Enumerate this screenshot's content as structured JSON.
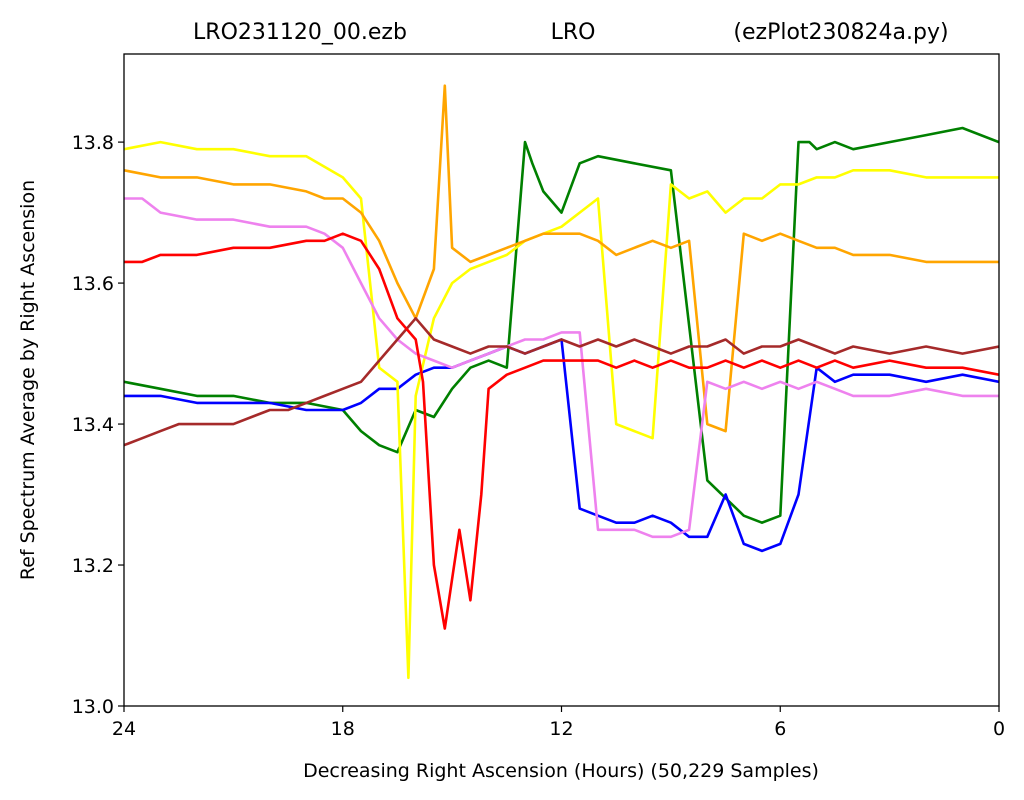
{
  "chart_data": {
    "type": "line",
    "title_parts": {
      "left": "LRO231120_00.ezb",
      "center": "LRO",
      "right": "(ezPlot230824a.py)"
    },
    "xlabel": "Decreasing Right Ascension (Hours) (50,229 Samples)",
    "ylabel": "Ref Spectrum Average by Right Ascension",
    "xlim": [
      24,
      0
    ],
    "ylim": [
      13.0,
      13.925
    ],
    "xticks": [
      24,
      18,
      12,
      6,
      0
    ],
    "yticks": [
      13.0,
      13.2,
      13.4,
      13.6,
      13.8
    ],
    "ytick_labels": [
      "13.0",
      "13.2",
      "13.4",
      "13.6",
      "13.8"
    ],
    "grid": false,
    "series": [
      {
        "color": "#008000",
        "x": [
          24,
          23,
          22,
          21,
          20,
          19,
          18,
          17.5,
          17,
          16.5,
          16,
          15.5,
          15,
          14.5,
          14,
          13.5,
          13,
          12.8,
          12.5,
          12,
          11.5,
          11,
          10,
          9,
          8,
          7,
          6.5,
          6,
          5.5,
          5.2,
          5,
          4.5,
          4,
          3,
          2,
          1,
          0
        ],
        "y": [
          13.46,
          13.45,
          13.44,
          13.44,
          13.43,
          13.43,
          13.42,
          13.39,
          13.37,
          13.36,
          13.42,
          13.41,
          13.45,
          13.48,
          13.49,
          13.48,
          13.8,
          13.77,
          13.73,
          13.7,
          13.77,
          13.78,
          13.77,
          13.76,
          13.32,
          13.27,
          13.26,
          13.27,
          13.8,
          13.8,
          13.79,
          13.8,
          13.79,
          13.8,
          13.81,
          13.82,
          13.8
        ]
      },
      {
        "color": "#0000ff",
        "x": [
          24,
          23,
          22,
          21,
          20,
          19,
          18,
          17.5,
          17,
          16.5,
          16,
          15.5,
          15,
          14.5,
          14,
          13.5,
          13,
          12.5,
          12,
          11.5,
          11,
          10.5,
          10,
          9.5,
          9,
          8.5,
          8,
          7.5,
          7,
          6.5,
          6,
          5.5,
          5,
          4.5,
          4,
          3,
          2,
          1,
          0
        ],
        "y": [
          13.44,
          13.44,
          13.43,
          13.43,
          13.43,
          13.42,
          13.42,
          13.43,
          13.45,
          13.45,
          13.47,
          13.48,
          13.48,
          13.49,
          13.5,
          13.51,
          13.5,
          13.51,
          13.52,
          13.28,
          13.27,
          13.26,
          13.26,
          13.27,
          13.26,
          13.24,
          13.24,
          13.3,
          13.23,
          13.22,
          13.23,
          13.3,
          13.48,
          13.46,
          13.47,
          13.47,
          13.46,
          13.47,
          13.46
        ]
      },
      {
        "color": "#ffff00",
        "x": [
          24,
          23,
          22,
          21,
          20,
          19,
          18,
          17.5,
          17,
          16.5,
          16.2,
          16,
          15.5,
          15,
          14.5,
          14,
          13.5,
          13,
          12.5,
          12,
          11.5,
          11,
          10.5,
          10,
          9.5,
          9,
          8.5,
          8,
          7.5,
          7,
          6.5,
          6,
          5.5,
          5,
          4.5,
          4,
          3,
          2,
          1,
          0
        ],
        "y": [
          13.79,
          13.8,
          13.79,
          13.79,
          13.78,
          13.78,
          13.75,
          13.72,
          13.48,
          13.46,
          13.04,
          13.44,
          13.55,
          13.6,
          13.62,
          13.63,
          13.64,
          13.66,
          13.67,
          13.68,
          13.7,
          13.72,
          13.4,
          13.39,
          13.38,
          13.74,
          13.72,
          13.73,
          13.7,
          13.72,
          13.72,
          13.74,
          13.74,
          13.75,
          13.75,
          13.76,
          13.76,
          13.75,
          13.75,
          13.75
        ]
      },
      {
        "color": "#ffa500",
        "x": [
          24,
          23,
          22,
          21,
          20,
          19,
          18.5,
          18,
          17.5,
          17,
          16.5,
          16,
          15.5,
          15.2,
          15,
          14.5,
          14,
          13.5,
          13,
          12.5,
          12,
          11.5,
          11,
          10.5,
          10,
          9.5,
          9,
          8.5,
          8,
          7.5,
          7,
          6.5,
          6,
          5.5,
          5,
          4.5,
          4,
          3,
          2,
          1,
          0
        ],
        "y": [
          13.76,
          13.75,
          13.75,
          13.74,
          13.74,
          13.73,
          13.72,
          13.72,
          13.7,
          13.66,
          13.6,
          13.55,
          13.62,
          13.88,
          13.65,
          13.63,
          13.64,
          13.65,
          13.66,
          13.67,
          13.67,
          13.67,
          13.66,
          13.64,
          13.65,
          13.66,
          13.65,
          13.66,
          13.4,
          13.39,
          13.67,
          13.66,
          13.67,
          13.66,
          13.65,
          13.65,
          13.64,
          13.64,
          13.63,
          13.63,
          13.63
        ]
      },
      {
        "color": "#ee82ee",
        "x": [
          24,
          23.5,
          23,
          22,
          21,
          20,
          19,
          18.5,
          18,
          17.5,
          17,
          16.5,
          16,
          15.5,
          15,
          14.5,
          14,
          13.5,
          13,
          12.5,
          12,
          11.5,
          11,
          10.5,
          10,
          9.5,
          9,
          8.5,
          8,
          7.5,
          7,
          6.5,
          6,
          5.5,
          5,
          4.5,
          4,
          3,
          2,
          1,
          0
        ],
        "y": [
          13.72,
          13.72,
          13.7,
          13.69,
          13.69,
          13.68,
          13.68,
          13.67,
          13.65,
          13.6,
          13.55,
          13.52,
          13.5,
          13.49,
          13.48,
          13.49,
          13.5,
          13.51,
          13.52,
          13.52,
          13.53,
          13.53,
          13.25,
          13.25,
          13.25,
          13.24,
          13.24,
          13.25,
          13.46,
          13.45,
          13.46,
          13.45,
          13.46,
          13.45,
          13.46,
          13.45,
          13.44,
          13.44,
          13.45,
          13.44,
          13.44
        ]
      },
      {
        "color": "#a52a2a",
        "x": [
          24,
          23.5,
          23,
          22.5,
          22,
          21.5,
          21,
          20.5,
          20,
          19.5,
          19,
          18.5,
          18,
          17.5,
          17,
          16.5,
          16,
          15.5,
          15,
          14.5,
          14,
          13.5,
          13,
          12.5,
          12,
          11.5,
          11,
          10.5,
          10,
          9.5,
          9,
          8.5,
          8,
          7.5,
          7,
          6.5,
          6,
          5.5,
          5,
          4.5,
          4,
          3,
          2,
          1,
          0
        ],
        "y": [
          13.37,
          13.38,
          13.39,
          13.4,
          13.4,
          13.4,
          13.4,
          13.41,
          13.42,
          13.42,
          13.43,
          13.44,
          13.45,
          13.46,
          13.49,
          13.52,
          13.55,
          13.52,
          13.51,
          13.5,
          13.51,
          13.51,
          13.5,
          13.51,
          13.52,
          13.51,
          13.52,
          13.51,
          13.52,
          13.51,
          13.5,
          13.51,
          13.51,
          13.52,
          13.5,
          13.51,
          13.51,
          13.52,
          13.51,
          13.5,
          13.51,
          13.5,
          13.51,
          13.5,
          13.51
        ]
      },
      {
        "color": "#ff0000",
        "x": [
          24,
          23.5,
          23,
          22,
          21,
          20,
          19,
          18.5,
          18,
          17.5,
          17,
          16.5,
          16,
          15.8,
          15.5,
          15.2,
          15,
          14.8,
          14.5,
          14.2,
          14,
          13.5,
          13,
          12.5,
          12,
          11.5,
          11,
          10.5,
          10,
          9.5,
          9,
          8.5,
          8,
          7.5,
          7,
          6.5,
          6,
          5.5,
          5,
          4.5,
          4,
          3,
          2,
          1,
          0
        ],
        "y": [
          13.63,
          13.63,
          13.64,
          13.64,
          13.65,
          13.65,
          13.66,
          13.66,
          13.67,
          13.66,
          13.62,
          13.55,
          13.52,
          13.46,
          13.2,
          13.11,
          13.18,
          13.25,
          13.15,
          13.3,
          13.45,
          13.47,
          13.48,
          13.49,
          13.49,
          13.49,
          13.49,
          13.48,
          13.49,
          13.48,
          13.49,
          13.48,
          13.48,
          13.49,
          13.48,
          13.49,
          13.48,
          13.49,
          13.48,
          13.49,
          13.48,
          13.49,
          13.48,
          13.48,
          13.47
        ]
      }
    ]
  }
}
